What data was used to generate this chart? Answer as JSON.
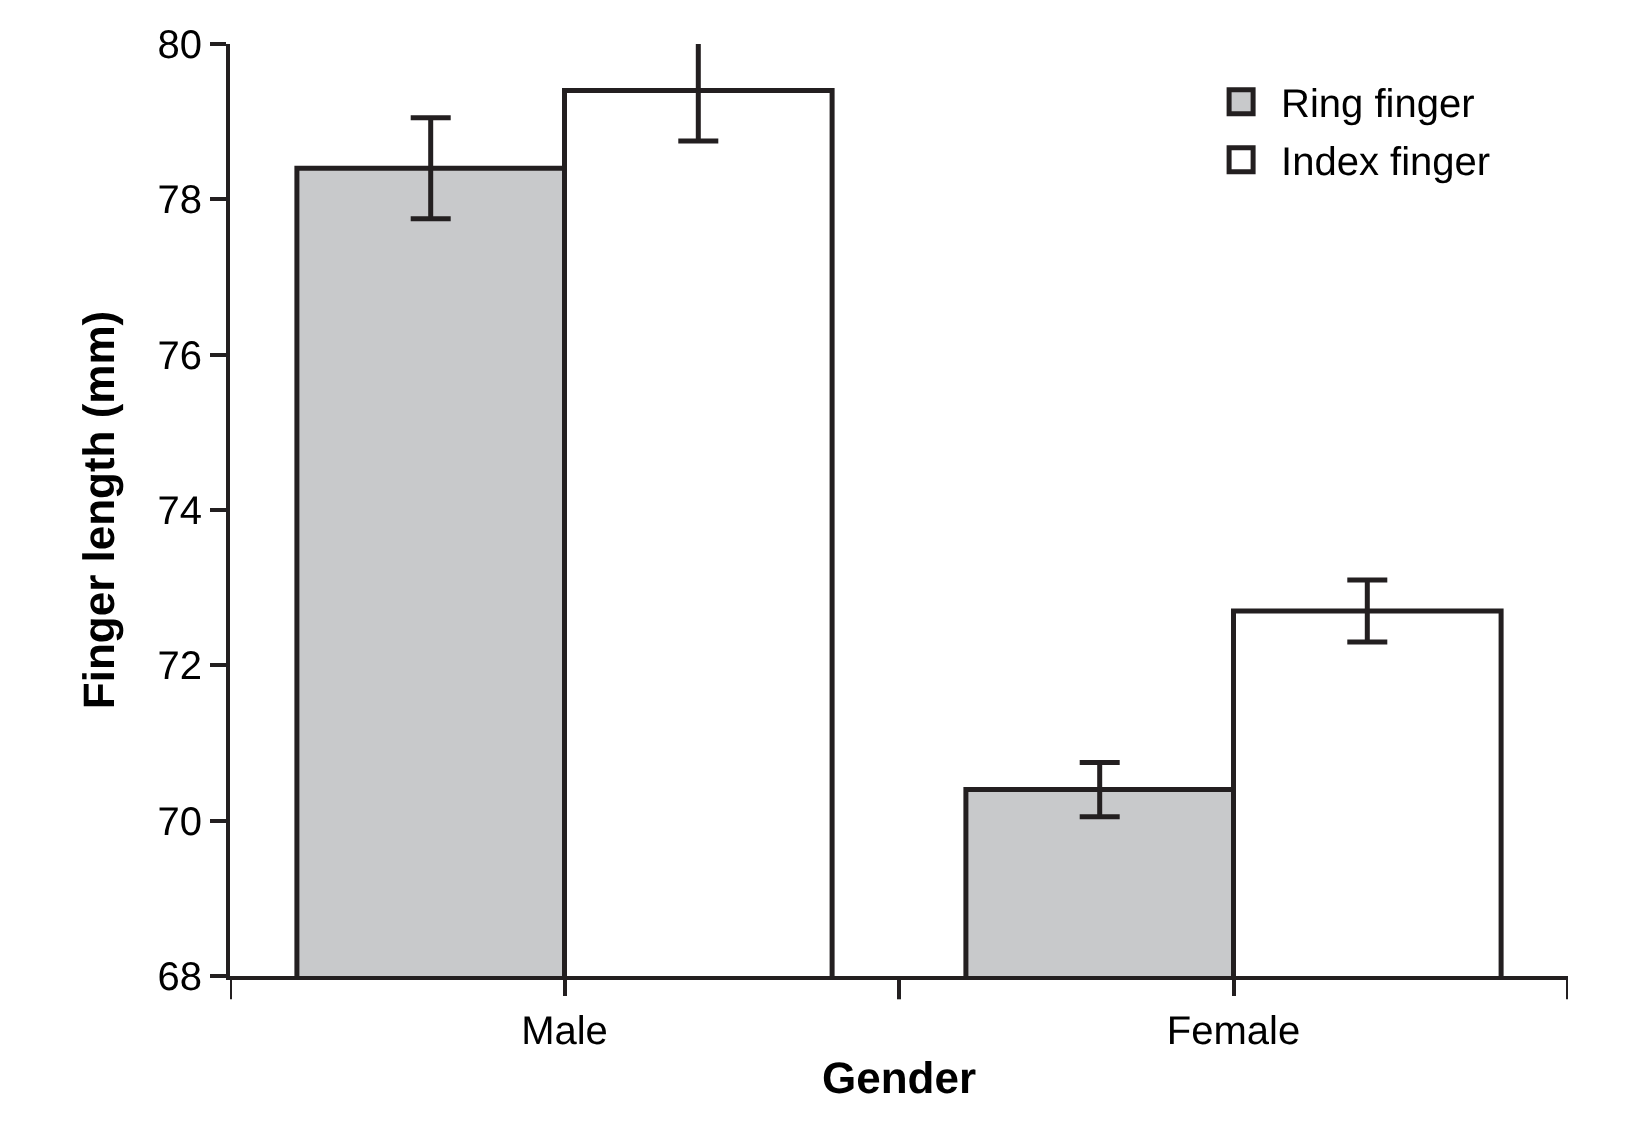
{
  "chart_data": {
    "type": "bar",
    "xlabel": "Gender",
    "ylabel": "Finger length (mm)",
    "categories": [
      "Male",
      "Female"
    ],
    "series": [
      {
        "name": "Ring finger",
        "color": "#c8c9cb",
        "values": [
          78.4,
          70.4
        ],
        "errors": [
          0.65,
          0.35
        ]
      },
      {
        "name": "Index finger",
        "color": "#ffffff",
        "values": [
          79.4,
          72.7
        ],
        "errors": [
          0.65,
          0.4
        ]
      }
    ],
    "ylim": [
      68,
      80
    ],
    "yticks": [
      68,
      70,
      72,
      74,
      76,
      78,
      80
    ],
    "legend": "top right"
  }
}
